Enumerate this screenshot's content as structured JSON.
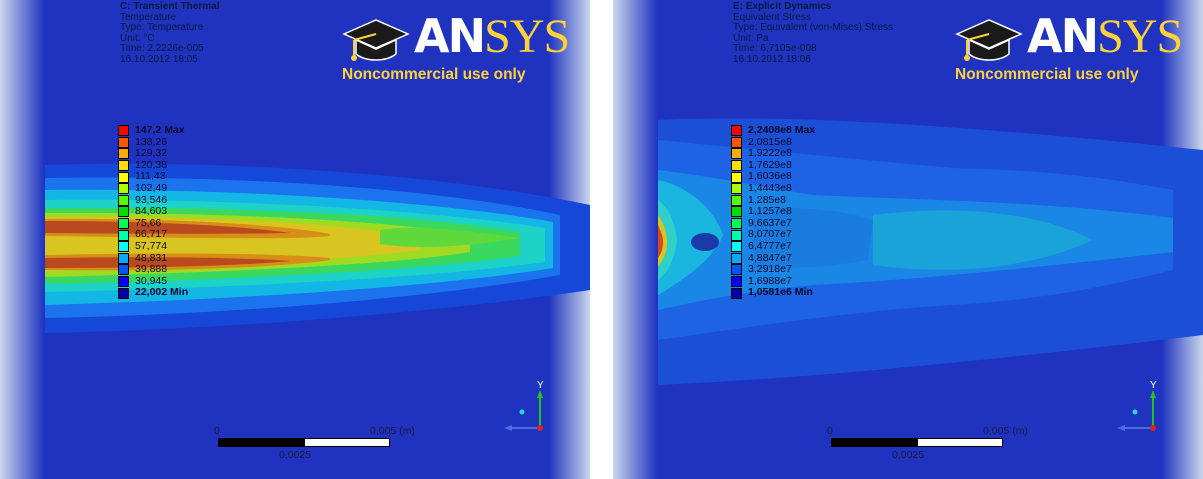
{
  "panels": [
    {
      "info": {
        "title": "C: Transient Thermal",
        "quantity": "Temperature",
        "type": "Type: Temperature",
        "unit": "Unit: °C",
        "time": "Time: 2,2226e-005",
        "date": "16.10.2012 18:05"
      },
      "legend": [
        {
          "label": "147,2 Max",
          "color": "#ff0000",
          "bold": true
        },
        {
          "label": "138,26",
          "color": "#ff5500"
        },
        {
          "label": "129,32",
          "color": "#ffaa00"
        },
        {
          "label": "120,38",
          "color": "#ffdd00"
        },
        {
          "label": "111,43",
          "color": "#ffff00"
        },
        {
          "label": "102,49",
          "color": "#aaff00"
        },
        {
          "label": "93,546",
          "color": "#55ff00"
        },
        {
          "label": "84,603",
          "color": "#00dd00"
        },
        {
          "label": "75,66",
          "color": "#00ff55"
        },
        {
          "label": "66,717",
          "color": "#00ffaa"
        },
        {
          "label": "57,774",
          "color": "#00ffff"
        },
        {
          "label": "48,831",
          "color": "#00aaff"
        },
        {
          "label": "39,888",
          "color": "#0055ff"
        },
        {
          "label": "30,945",
          "color": "#0000ff"
        },
        {
          "label": "22,002 Min",
          "color": "#0000aa",
          "bold": true
        }
      ],
      "scale": {
        "zero": "0",
        "end": "0,005 (m)",
        "mid": "0,0025"
      },
      "axis": {
        "y": "Y"
      }
    },
    {
      "info": {
        "title": "E: Explicit Dynamics",
        "quantity": "Equivalent Stress",
        "type": "Type: Equivalent (von-Mises) Stress",
        "unit": "Unit: Pa",
        "time": "Time: 6,7105e-008",
        "date": "16.10.2012 18:06"
      },
      "legend": [
        {
          "label": "2,2408e8 Max",
          "color": "#ff0000",
          "bold": true
        },
        {
          "label": "2,0815e8",
          "color": "#ff5500"
        },
        {
          "label": "1,9222e8",
          "color": "#ffaa00"
        },
        {
          "label": "1,7629e8",
          "color": "#ffdd00"
        },
        {
          "label": "1,6036e8",
          "color": "#ffff00"
        },
        {
          "label": "1,4443e8",
          "color": "#aaff00"
        },
        {
          "label": "1,285e8",
          "color": "#55ff00"
        },
        {
          "label": "1,1257e8",
          "color": "#00dd00"
        },
        {
          "label": "9,6637e7",
          "color": "#00ff55"
        },
        {
          "label": "8,0707e7",
          "color": "#00ffaa"
        },
        {
          "label": "6,4777e7",
          "color": "#00ffff"
        },
        {
          "label": "4,8847e7",
          "color": "#00aaff"
        },
        {
          "label": "3,2918e7",
          "color": "#0055ff"
        },
        {
          "label": "1,6988e7",
          "color": "#0000ff"
        },
        {
          "label": "1,0581e6 Min",
          "color": "#0000aa",
          "bold": true
        }
      ],
      "scale": {
        "zero": "0",
        "end": "0,005 (m)",
        "mid": "0,0025"
      },
      "axis": {
        "y": "Y"
      }
    }
  ],
  "logo": {
    "brand_main": "AN",
    "brand_accent": "SYS",
    "subtitle": "Noncommercial use only"
  },
  "colors": {
    "background_blue": "#1f33c0",
    "gradient_edge": "#c8d6ee",
    "logo_yellow": "#ffd23a"
  }
}
